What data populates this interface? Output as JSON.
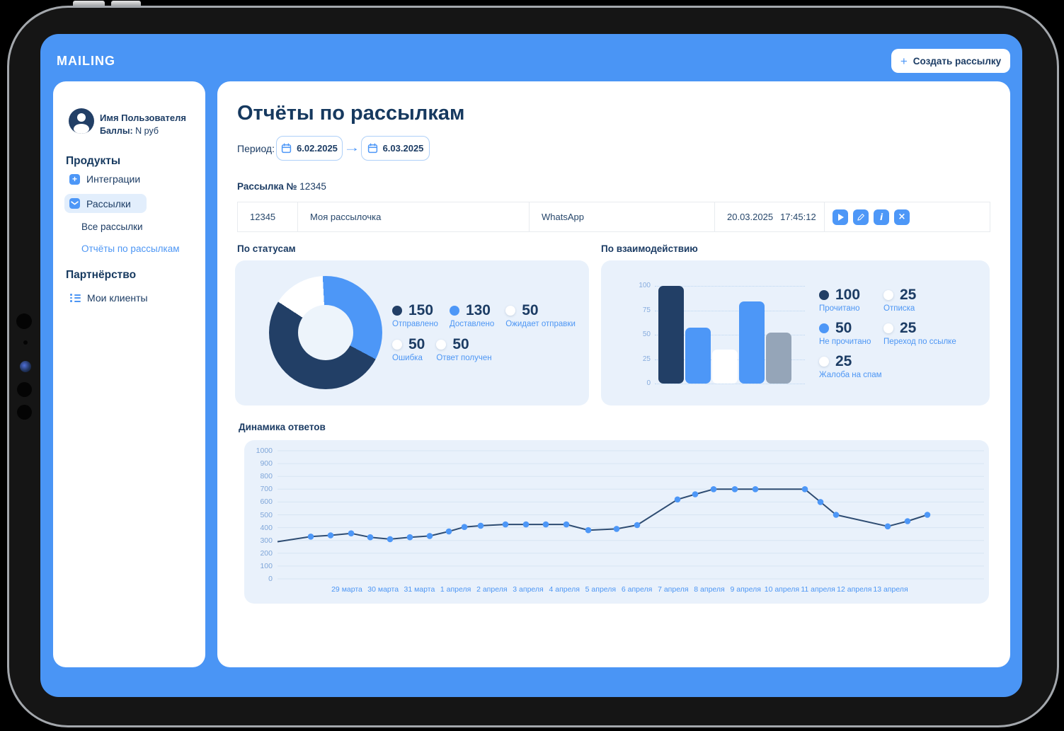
{
  "colors": {
    "accent_blue": "#4D97F7",
    "screen_blue": "#4A95F5",
    "navy": "#1C3C64",
    "navy_fill": "#223F66",
    "gray_bar": "#95A5B8",
    "card_bg": "#E9F1FB",
    "link_blue": "#4D96F4",
    "tick_blue": "#7FA6D9",
    "border": "#E8EBEF"
  },
  "icons": {
    "play": "▶",
    "edit": "pencil",
    "info": "i",
    "close": "×",
    "plus": "+",
    "arrow": "→"
  },
  "header": {
    "brand": "MAILING",
    "create_plus": "+",
    "create_button": "Создать рассылку"
  },
  "sidebar": {
    "user_name": "Имя Пользователя",
    "balance_label": "Баллы:",
    "balance_value": "N руб",
    "products_heading": "Продукты",
    "integrations": "Интеграции",
    "mailings": "Рассылки",
    "all_mailings": "Все рассылки",
    "reports": "Отчёты по рассылкам",
    "partnership_heading": "Партнёрство",
    "my_clients": "Мои клиенты"
  },
  "main": {
    "title": "Отчёты по рассылкам",
    "period_label": "Период:",
    "date_from": "6.02.2025",
    "date_to": "6.03.2025",
    "mailing_label": "Рассылка №",
    "mailing_number": "12345",
    "table": {
      "id": "12345",
      "name": "Моя рассылочка",
      "channel": "WhatsApp",
      "date": "20.03.2025",
      "time": "17:45:12"
    },
    "sections": {
      "statuses": "По статусам",
      "interaction": "По взаимодействию",
      "dynamics": "Динамика ответов"
    }
  },
  "chart_data": [
    {
      "id": "statuses",
      "type": "pie",
      "title": "По статусам",
      "legend_rows": [
        [
          {
            "label": "Отправлено",
            "value": 150,
            "color": "#223F66"
          },
          {
            "label": "Доставлено",
            "value": 130,
            "color": "#4D97F7"
          },
          {
            "label": "Ожидает отправки",
            "value": 50,
            "color": "#FFFFFF"
          }
        ],
        [
          {
            "label": "Ошибка",
            "value": 50,
            "color": "#FFFFFF"
          },
          {
            "label": "Ответ получен",
            "value": 50,
            "color": "#FFFFFF"
          }
        ]
      ],
      "segments": [
        {
          "color": "#4D97F7",
          "from": -3,
          "to": 118
        },
        {
          "color": "#223F66",
          "from": 118,
          "to": 303
        },
        {
          "color": "#FFFFFF",
          "from": 303,
          "to": 357
        }
      ]
    },
    {
      "id": "interaction",
      "type": "bar",
      "title": "По взаимодействию",
      "ylim": [
        0,
        100
      ],
      "yticks": [
        100,
        75,
        50,
        25,
        0
      ],
      "bars": [
        {
          "value": 100,
          "color": "#223F66"
        },
        {
          "value": 57,
          "color": "#4D97F7"
        },
        {
          "value": 35,
          "color": "#FFFFFF"
        },
        {
          "value": 84,
          "color": "#4D97F7"
        },
        {
          "value": 52,
          "color": "#95A5B8"
        }
      ],
      "legend": [
        {
          "label": "Прочитано",
          "value": 100,
          "color": "#223F66"
        },
        {
          "label": "Отписка",
          "value": 25,
          "color": "#FFFFFF"
        },
        {
          "label": "Не прочитано",
          "value": 50,
          "color": "#4D97F7"
        },
        {
          "label": "Переход по ссылке",
          "value": 25,
          "color": "#FFFFFF"
        },
        {
          "label": "Жалоба на спам",
          "value": 25,
          "color": "#FFFFFF"
        }
      ]
    },
    {
      "id": "dynamics",
      "type": "line",
      "title": "Динамика ответов",
      "ylim": [
        0,
        1000
      ],
      "yticks": [
        1000,
        900,
        800,
        700,
        600,
        500,
        400,
        300,
        200,
        100,
        0
      ],
      "x_labels": [
        "29 марта",
        "30 марта",
        "31 марта",
        "1 апреля",
        "2 апреля",
        "3 апреля",
        "4 апреля",
        "5 апреля",
        "6 апреля",
        "7 апреля",
        "8 апреля",
        "9 апреля",
        "10 апреля",
        "11 апреля",
        "12 апреля",
        "13 апреля"
      ],
      "points": [
        [
          0,
          290
        ],
        [
          47,
          330
        ],
        [
          75,
          340
        ],
        [
          104,
          355
        ],
        [
          131,
          325
        ],
        [
          159,
          310
        ],
        [
          187,
          325
        ],
        [
          215,
          335
        ],
        [
          242,
          370
        ],
        [
          264,
          405
        ],
        [
          287,
          415
        ],
        [
          322,
          425
        ],
        [
          351,
          425
        ],
        [
          379,
          425
        ],
        [
          408,
          425
        ],
        [
          439,
          380
        ],
        [
          479,
          390
        ],
        [
          508,
          420
        ],
        [
          565,
          620
        ],
        [
          590,
          660
        ],
        [
          616,
          700
        ],
        [
          646,
          700
        ],
        [
          675,
          700
        ],
        [
          745,
          700
        ],
        [
          767,
          600
        ],
        [
          789,
          500
        ],
        [
          862,
          410
        ],
        [
          890,
          450
        ],
        [
          918,
          500
        ]
      ],
      "line_color": "#2E4C72",
      "marker_color": "#4D97F7",
      "grid_color": "#D8E5F3"
    }
  ]
}
